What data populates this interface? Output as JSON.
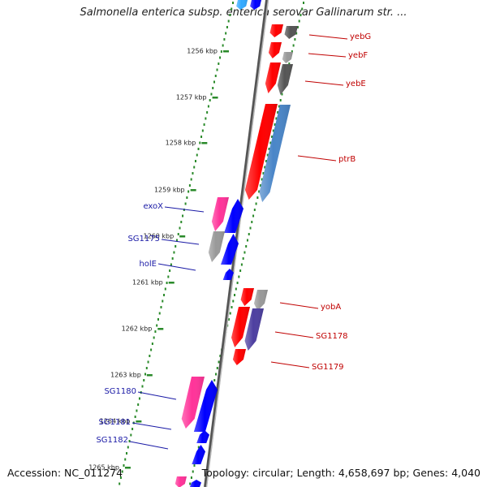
{
  "title": "Salmonella enterica subsp. enterica serovar Gallinarum str. ...",
  "footer": {
    "accession": "Accession: NC_011274",
    "summary": "Topology: circular; Length: 4,658,697 bp; Genes: 4,040"
  },
  "colors": {
    "backbone": "#808080",
    "ruler_dots": "#2a8a2a",
    "left_label": "#1a1aa6",
    "right_label": "#c00000",
    "red": "#ff0000",
    "pink": "#ff3399",
    "blue": "#0000ff",
    "gray": "#999999",
    "darkgray": "#555555",
    "steelblue": "#4a86c8",
    "slateblue": "#4d3fa0"
  },
  "ticks": [
    {
      "label": "1256 kbp"
    },
    {
      "label": "1257 kbp"
    },
    {
      "label": "1258 kbp"
    },
    {
      "label": "1259 kbp"
    },
    {
      "label": "1260 kbp"
    },
    {
      "label": "1261 kbp"
    },
    {
      "label": "1262 kbp"
    },
    {
      "label": "1263 kbp"
    },
    {
      "label": "1264 kbp"
    },
    {
      "label": "1265 kbp"
    }
  ],
  "left_labels": [
    {
      "text": "exoX"
    },
    {
      "text": "SG1175"
    },
    {
      "text": "holE"
    },
    {
      "text": "SG1180"
    },
    {
      "text": "SG1181"
    },
    {
      "text": "SG1182"
    }
  ],
  "right_labels": [
    {
      "text": "yebG"
    },
    {
      "text": "yebF"
    },
    {
      "text": "yebE"
    },
    {
      "text": "ptrB"
    },
    {
      "text": "yobA"
    },
    {
      "text": "SG1178"
    },
    {
      "text": "SG1179"
    }
  ]
}
